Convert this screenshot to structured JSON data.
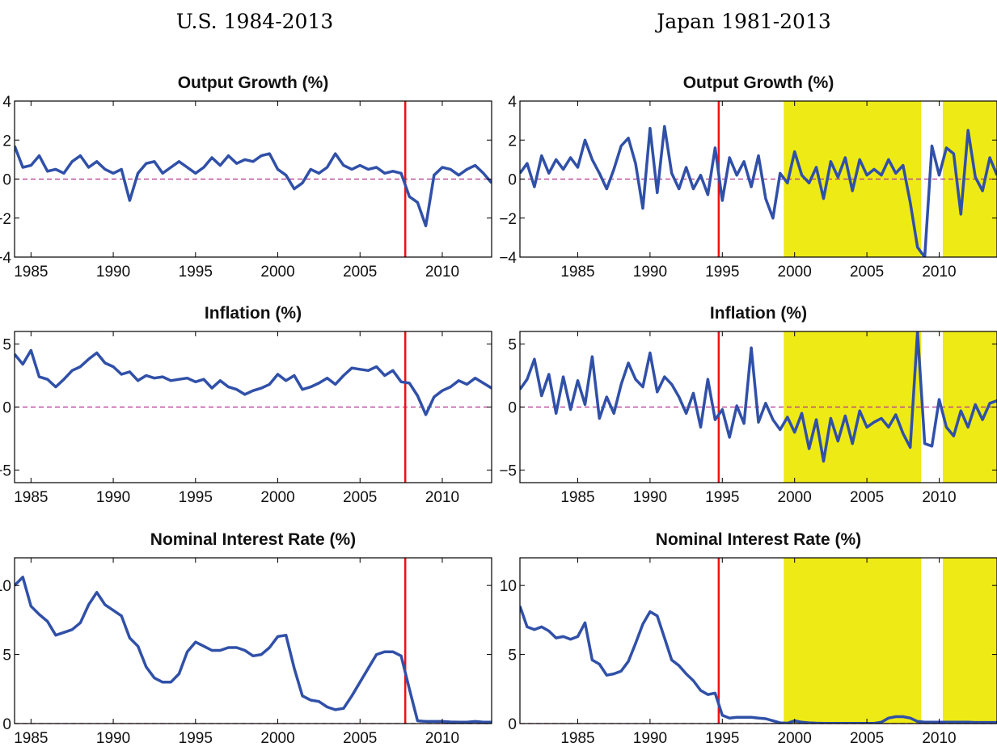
{
  "columns": [
    "U.S. 1984-2013",
    "Japan 1981-2013"
  ],
  "colors": {
    "series": "#3050a8",
    "zero_line": "#b03090",
    "break_line": "#ee1111",
    "zlb_shading": "#eeea16"
  },
  "chart_data": [
    {
      "type": "line",
      "title": "Output Growth (%)",
      "column": "U.S. 1984-2013",
      "xlim": [
        1984,
        2013
      ],
      "ylim": [
        -4,
        4
      ],
      "xticks": [
        1985,
        1990,
        1995,
        2000,
        2005,
        2010
      ],
      "yticks": [
        -4,
        -2,
        0,
        2,
        4
      ],
      "zero_line": 0,
      "vertical_line": 2007.75,
      "shaded": [],
      "x": [
        1984,
        1984.5,
        1985,
        1985.5,
        1986,
        1986.5,
        1987,
        1987.5,
        1988,
        1988.5,
        1989,
        1989.5,
        1990,
        1990.5,
        1991,
        1991.5,
        1992,
        1992.5,
        1993,
        1993.5,
        1994,
        1994.5,
        1995,
        1995.5,
        1996,
        1996.5,
        1997,
        1997.5,
        1998,
        1998.5,
        1999,
        1999.5,
        2000,
        2000.5,
        2001,
        2001.5,
        2002,
        2002.5,
        2003,
        2003.5,
        2004,
        2004.5,
        2005,
        2005.5,
        2006,
        2006.5,
        2007,
        2007.5,
        2008,
        2008.5,
        2009,
        2009.5,
        2010,
        2010.5,
        2011,
        2011.5,
        2012,
        2012.5,
        2013
      ],
      "y": [
        1.7,
        0.6,
        0.7,
        1.2,
        0.4,
        0.5,
        0.3,
        0.9,
        1.2,
        0.6,
        0.9,
        0.5,
        0.3,
        0.5,
        -1.1,
        0.3,
        0.8,
        0.9,
        0.3,
        0.6,
        0.9,
        0.6,
        0.3,
        0.6,
        1.1,
        0.7,
        1.2,
        0.8,
        1.0,
        0.9,
        1.2,
        1.3,
        0.5,
        0.2,
        -0.5,
        -0.2,
        0.5,
        0.3,
        0.6,
        1.3,
        0.7,
        0.5,
        0.7,
        0.5,
        0.6,
        0.3,
        0.4,
        0.3,
        -0.9,
        -1.2,
        -2.4,
        0.2,
        0.6,
        0.5,
        0.2,
        0.5,
        0.7,
        0.3,
        -0.2
      ]
    },
    {
      "type": "line",
      "title": "Inflation (%)",
      "column": "U.S. 1984-2013",
      "xlim": [
        1984,
        2013
      ],
      "ylim": [
        -6,
        6
      ],
      "xticks": [
        1985,
        1990,
        1995,
        2000,
        2005,
        2010
      ],
      "yticks": [
        -5,
        0,
        5
      ],
      "zero_line": 0,
      "vertical_line": 2007.75,
      "shaded": [],
      "x": [
        1984,
        1984.5,
        1985,
        1985.5,
        1986,
        1986.5,
        1987,
        1987.5,
        1988,
        1988.5,
        1989,
        1989.5,
        1990,
        1990.5,
        1991,
        1991.5,
        1992,
        1992.5,
        1993,
        1993.5,
        1994,
        1994.5,
        1995,
        1995.5,
        1996,
        1996.5,
        1997,
        1997.5,
        1998,
        1998.5,
        1999,
        1999.5,
        2000,
        2000.5,
        2001,
        2001.5,
        2002,
        2002.5,
        2003,
        2003.5,
        2004,
        2004.5,
        2005,
        2005.5,
        2006,
        2006.5,
        2007,
        2007.5,
        2008,
        2008.5,
        2009,
        2009.5,
        2010,
        2010.5,
        2011,
        2011.5,
        2012,
        2012.5,
        2013
      ],
      "y": [
        4.2,
        3.4,
        4.5,
        2.4,
        2.2,
        1.6,
        2.2,
        2.9,
        3.2,
        3.8,
        4.3,
        3.5,
        3.2,
        2.6,
        2.8,
        2.1,
        2.5,
        2.3,
        2.4,
        2.1,
        2.2,
        2.3,
        2.0,
        2.2,
        1.5,
        2.1,
        1.6,
        1.4,
        1.0,
        1.3,
        1.5,
        1.8,
        2.6,
        2.1,
        2.5,
        1.4,
        1.6,
        1.9,
        2.3,
        1.8,
        2.5,
        3.1,
        3.0,
        2.9,
        3.2,
        2.5,
        2.9,
        2.0,
        1.9,
        0.9,
        -0.6,
        0.8,
        1.3,
        1.6,
        2.1,
        1.8,
        2.3,
        1.9,
        1.5
      ]
    },
    {
      "type": "line",
      "title": "Nominal Interest Rate (%)",
      "column": "U.S. 1984-2013",
      "xlim": [
        1984,
        2013
      ],
      "ylim": [
        0,
        12
      ],
      "xticks": [
        1985,
        1990,
        1995,
        2000,
        2005,
        2010
      ],
      "yticks": [
        0,
        5,
        10
      ],
      "zero_line": 0,
      "vertical_line": 2007.75,
      "shaded": [],
      "x": [
        1984,
        1984.5,
        1985,
        1985.5,
        1986,
        1986.5,
        1987,
        1987.5,
        1988,
        1988.5,
        1989,
        1989.5,
        1990,
        1990.5,
        1991,
        1991.5,
        1992,
        1992.5,
        1993,
        1993.5,
        1994,
        1994.5,
        1995,
        1995.5,
        1996,
        1996.5,
        1997,
        1997.5,
        1998,
        1998.5,
        1999,
        1999.5,
        2000,
        2000.5,
        2001,
        2001.5,
        2002,
        2002.5,
        2003,
        2003.5,
        2004,
        2004.5,
        2005,
        2005.5,
        2006,
        2006.5,
        2007,
        2007.5,
        2008,
        2008.5,
        2009,
        2009.5,
        2010,
        2010.5,
        2011,
        2011.5,
        2012,
        2012.5,
        2013
      ],
      "y": [
        10.0,
        10.6,
        8.5,
        7.9,
        7.4,
        6.4,
        6.6,
        6.8,
        7.3,
        8.6,
        9.5,
        8.6,
        8.2,
        7.8,
        6.2,
        5.6,
        4.1,
        3.3,
        3.0,
        3.0,
        3.6,
        5.2,
        5.9,
        5.6,
        5.3,
        5.3,
        5.5,
        5.5,
        5.3,
        4.9,
        5.0,
        5.5,
        6.3,
        6.4,
        4.0,
        2.0,
        1.7,
        1.6,
        1.2,
        1.0,
        1.1,
        2.0,
        3.0,
        4.0,
        5.0,
        5.2,
        5.2,
        4.9,
        2.5,
        0.2,
        0.15,
        0.15,
        0.15,
        0.12,
        0.1,
        0.1,
        0.15,
        0.1,
        0.1
      ]
    },
    {
      "type": "line",
      "title": "Output Growth (%)",
      "column": "Japan 1981-2013",
      "xlim": [
        1981,
        2014
      ],
      "ylim": [
        -4,
        4
      ],
      "xticks": [
        1985,
        1990,
        1995,
        2000,
        2005,
        2010
      ],
      "yticks": [
        -4,
        -2,
        0,
        2,
        4
      ],
      "zero_line": 0,
      "vertical_line": 1994.75,
      "shaded": [
        [
          1999.25,
          2008.75
        ],
        [
          2010.25,
          2014
        ]
      ],
      "x": [
        1981,
        1981.5,
        1982,
        1982.5,
        1983,
        1983.5,
        1984,
        1984.5,
        1985,
        1985.5,
        1986,
        1986.5,
        1987,
        1987.5,
        1988,
        1988.5,
        1989,
        1989.5,
        1990,
        1990.5,
        1991,
        1991.5,
        1992,
        1992.5,
        1993,
        1993.5,
        1994,
        1994.5,
        1995,
        1995.5,
        1996,
        1996.5,
        1997,
        1997.5,
        1998,
        1998.5,
        1999,
        1999.5,
        2000,
        2000.5,
        2001,
        2001.5,
        2002,
        2002.5,
        2003,
        2003.5,
        2004,
        2004.5,
        2005,
        2005.5,
        2006,
        2006.5,
        2007,
        2007.5,
        2008,
        2008.5,
        2009,
        2009.5,
        2010,
        2010.5,
        2011,
        2011.5,
        2012,
        2012.5,
        2013,
        2013.5,
        2014
      ],
      "y": [
        0.3,
        0.8,
        -0.4,
        1.2,
        0.3,
        1.0,
        0.5,
        1.1,
        0.6,
        2.0,
        1.0,
        0.3,
        -0.5,
        0.5,
        1.7,
        2.1,
        0.8,
        -1.5,
        2.6,
        -0.7,
        2.7,
        0.3,
        -0.5,
        0.6,
        -0.5,
        0.2,
        -0.8,
        1.6,
        -1.1,
        1.1,
        0.2,
        0.9,
        -0.4,
        1.2,
        -1.0,
        -2.0,
        0.3,
        -0.2,
        1.4,
        0.2,
        -0.2,
        0.6,
        -1.0,
        0.9,
        0.1,
        1.1,
        -0.6,
        1.0,
        0.2,
        0.5,
        0.2,
        1.0,
        0.3,
        0.7,
        -1.2,
        -3.5,
        -4.0,
        1.7,
        0.2,
        1.6,
        1.3,
        -1.8,
        2.5,
        0.1,
        -0.6,
        1.1,
        0.2
      ]
    },
    {
      "type": "line",
      "title": "Inflation (%)",
      "column": "Japan 1981-2013",
      "xlim": [
        1981,
        2014
      ],
      "ylim": [
        -6,
        6
      ],
      "xticks": [
        1985,
        1990,
        1995,
        2000,
        2005,
        2010
      ],
      "yticks": [
        -5,
        0,
        5
      ],
      "zero_line": 0,
      "vertical_line": 1994.75,
      "shaded": [
        [
          1999.25,
          2008.75
        ],
        [
          2010.25,
          2014
        ]
      ],
      "x": [
        1981,
        1981.5,
        1982,
        1982.5,
        1983,
        1983.5,
        1984,
        1984.5,
        1985,
        1985.5,
        1986,
        1986.5,
        1987,
        1987.5,
        1988,
        1988.5,
        1989,
        1989.5,
        1990,
        1990.5,
        1991,
        1991.5,
        1992,
        1992.5,
        1993,
        1993.5,
        1994,
        1994.5,
        1995,
        1995.5,
        1996,
        1996.5,
        1997,
        1997.5,
        1998,
        1998.5,
        1999,
        1999.5,
        2000,
        2000.5,
        2001,
        2001.5,
        2002,
        2002.5,
        2003,
        2003.5,
        2004,
        2004.5,
        2005,
        2005.5,
        2006,
        2006.5,
        2007,
        2007.5,
        2008,
        2008.5,
        2009,
        2009.5,
        2010,
        2010.5,
        2011,
        2011.5,
        2012,
        2012.5,
        2013,
        2013.5,
        2014
      ],
      "y": [
        1.4,
        2.2,
        3.8,
        0.9,
        2.6,
        -0.5,
        2.4,
        -0.2,
        2.1,
        0.2,
        4.0,
        -0.9,
        0.8,
        -0.5,
        1.8,
        3.5,
        2.2,
        1.6,
        4.3,
        1.2,
        2.4,
        1.8,
        0.8,
        -0.5,
        1.1,
        -1.6,
        2.2,
        -1.0,
        -0.2,
        -2.4,
        0.1,
        -1.3,
        4.7,
        -1.2,
        0.3,
        -1.0,
        -1.8,
        -0.8,
        -2.0,
        -0.5,
        -3.3,
        -1.0,
        -4.3,
        -0.9,
        -2.7,
        -0.7,
        -2.9,
        -0.3,
        -1.6,
        -1.2,
        -0.9,
        -1.6,
        -0.6,
        -2.1,
        -3.2,
        6.0,
        -2.9,
        -3.1,
        0.6,
        -1.6,
        -2.3,
        -0.3,
        -1.6,
        0.2,
        -1.0,
        0.3,
        0.5
      ]
    },
    {
      "type": "line",
      "title": "Nominal Interest Rate (%)",
      "column": "Japan 1981-2013",
      "xlim": [
        1981,
        2014
      ],
      "ylim": [
        0,
        12
      ],
      "xticks": [
        1985,
        1990,
        1995,
        2000,
        2005,
        2010
      ],
      "yticks": [
        0,
        5,
        10
      ],
      "zero_line": 0,
      "vertical_line": 1994.75,
      "shaded": [
        [
          1999.25,
          2008.75
        ],
        [
          2010.25,
          2014
        ]
      ],
      "x": [
        1981,
        1981.5,
        1982,
        1982.5,
        1983,
        1983.5,
        1984,
        1984.5,
        1985,
        1985.5,
        1986,
        1986.5,
        1987,
        1987.5,
        1988,
        1988.5,
        1989,
        1989.5,
        1990,
        1990.5,
        1991,
        1991.5,
        1992,
        1992.5,
        1993,
        1993.5,
        1994,
        1994.5,
        1995,
        1995.5,
        1996,
        1996.5,
        1997,
        1997.5,
        1998,
        1998.5,
        1999,
        1999.5,
        2000,
        2000.5,
        2001,
        2001.5,
        2002,
        2002.5,
        2003,
        2003.5,
        2004,
        2004.5,
        2005,
        2005.5,
        2006,
        2006.5,
        2007,
        2007.5,
        2008,
        2008.5,
        2009,
        2009.5,
        2010,
        2010.5,
        2011,
        2011.5,
        2012,
        2012.5,
        2013,
        2013.5,
        2014
      ],
      "y": [
        8.5,
        7.0,
        6.8,
        7.0,
        6.7,
        6.2,
        6.3,
        6.1,
        6.3,
        7.3,
        4.6,
        4.3,
        3.5,
        3.6,
        3.8,
        4.5,
        5.8,
        7.2,
        8.1,
        7.8,
        6.2,
        4.6,
        4.2,
        3.6,
        3.1,
        2.4,
        2.1,
        2.2,
        0.6,
        0.4,
        0.45,
        0.45,
        0.45,
        0.4,
        0.35,
        0.2,
        0.05,
        0.03,
        0.2,
        0.1,
        0.05,
        0.03,
        0.02,
        0.02,
        0.02,
        0.02,
        0.02,
        0.02,
        0.02,
        0.02,
        0.1,
        0.4,
        0.5,
        0.5,
        0.4,
        0.15,
        0.1,
        0.1,
        0.1,
        0.1,
        0.1,
        0.1,
        0.1,
        0.08,
        0.08,
        0.08,
        0.08
      ]
    }
  ]
}
